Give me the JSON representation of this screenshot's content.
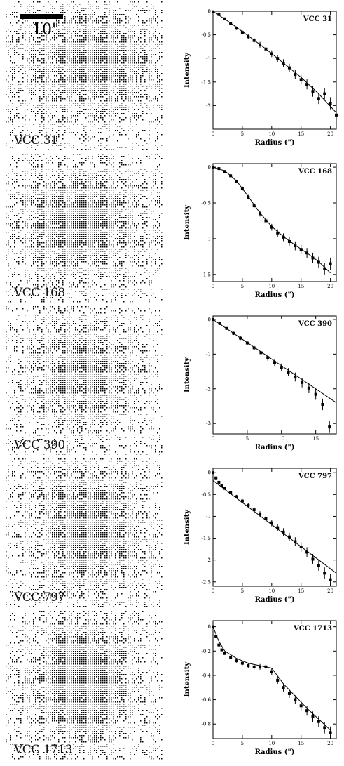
{
  "scale_bar": {
    "label": "10\""
  },
  "chart_data": [
    {
      "type": "scatter",
      "name": "VCC 31",
      "title": "VCC 31",
      "xlabel": "Radius (\")",
      "ylabel": "Intensity",
      "xlim": [
        0,
        21
      ],
      "ylim": [
        -2.5,
        0
      ],
      "xticks": [
        0,
        5,
        10,
        15,
        20
      ],
      "yticks": [
        0,
        -0.5,
        -1,
        -1.5,
        -2
      ],
      "xtick_labels": [
        "0",
        "5",
        "10",
        "15",
        "20"
      ],
      "ytick_labels": [
        "0",
        "-0.5",
        "-1",
        "-1.5",
        "-2"
      ],
      "profile": {
        "x": [
          0,
          1,
          2,
          3,
          4,
          5,
          6,
          7,
          8,
          9,
          10,
          11,
          12,
          13,
          14,
          15,
          16,
          17,
          18,
          19,
          20,
          21
        ],
        "y": [
          -0.01,
          -0.07,
          -0.16,
          -0.26,
          -0.36,
          -0.45,
          -0.54,
          -0.62,
          -0.71,
          -0.8,
          -0.9,
          -1.0,
          -1.1,
          -1.2,
          -1.34,
          -1.45,
          -1.55,
          -1.7,
          -1.85,
          -1.75,
          -1.95,
          -2.2
        ]
      },
      "model": {
        "x": [
          0,
          3,
          6,
          9,
          12,
          15,
          18,
          21
        ],
        "y": [
          0,
          -0.25,
          -0.52,
          -0.8,
          -1.1,
          -1.4,
          -1.75,
          -2.15
        ]
      }
    },
    {
      "type": "scatter",
      "name": "VCC 168",
      "title": "VCC 168",
      "xlabel": "Radius (\")",
      "ylabel": "Intensity",
      "xlim": [
        0,
        21
      ],
      "ylim": [
        -1.6,
        0.05
      ],
      "xticks": [
        0,
        5,
        10,
        15,
        20
      ],
      "yticks": [
        0,
        -0.5,
        -1,
        -1.5
      ],
      "xtick_labels": [
        "0",
        "5",
        "10",
        "15",
        "20"
      ],
      "ytick_labels": [
        "0",
        "-0.5",
        "-1",
        "-1.5"
      ],
      "profile": {
        "x": [
          0,
          1,
          2,
          3,
          4,
          5,
          6,
          7,
          8,
          9,
          10,
          11,
          12,
          13,
          14,
          15,
          16,
          17,
          18,
          19,
          20
        ],
        "y": [
          0.0,
          -0.02,
          -0.06,
          -0.12,
          -0.2,
          -0.3,
          -0.42,
          -0.54,
          -0.65,
          -0.75,
          -0.84,
          -0.92,
          -0.98,
          -1.04,
          -1.1,
          -1.15,
          -1.2,
          -1.27,
          -1.33,
          -1.42,
          -1.35
        ]
      },
      "model": {
        "x": [
          0,
          2,
          4,
          6,
          8,
          10,
          12,
          14,
          16,
          18,
          20
        ],
        "y": [
          0,
          -0.05,
          -0.19,
          -0.41,
          -0.64,
          -0.83,
          -0.97,
          -1.09,
          -1.2,
          -1.32,
          -1.48
        ]
      }
    },
    {
      "type": "scatter",
      "name": "VCC 390",
      "title": "VCC 390",
      "xlabel": "Radius (\")",
      "ylabel": "Intensity",
      "xlim": [
        0,
        18
      ],
      "ylim": [
        -3.3,
        0.1
      ],
      "xticks": [
        0,
        5,
        10,
        15
      ],
      "yticks": [
        0,
        -1,
        -2,
        -3
      ],
      "xtick_labels": [
        "0",
        "5",
        "10",
        "15"
      ],
      "ytick_labels": [
        "0",
        "-1",
        "-2",
        "-3"
      ],
      "profile": {
        "x": [
          0,
          1,
          2,
          3,
          4,
          5,
          6,
          7,
          8,
          9,
          10,
          11,
          12,
          13,
          14,
          15,
          16,
          17
        ],
        "y": [
          0.0,
          -0.12,
          -0.26,
          -0.4,
          -0.54,
          -0.68,
          -0.82,
          -0.96,
          -1.1,
          -1.24,
          -1.38,
          -1.52,
          -1.66,
          -1.82,
          -1.98,
          -2.16,
          -2.45,
          -3.1
        ]
      },
      "model": {
        "x": [
          0,
          18
        ],
        "y": [
          0,
          -2.4
        ]
      }
    },
    {
      "type": "scatter",
      "name": "VCC 797",
      "title": "VCC 797",
      "xlabel": "Radius (\")",
      "ylabel": "Intensity",
      "xlim": [
        0,
        21
      ],
      "ylim": [
        -2.6,
        0.1
      ],
      "xticks": [
        0,
        5,
        10,
        15,
        20
      ],
      "yticks": [
        0,
        -0.5,
        -1,
        -1.5,
        -2,
        -2.5
      ],
      "xtick_labels": [
        "0",
        "5",
        "10",
        "15",
        "20"
      ],
      "ytick_labels": [
        "0",
        "-0.5",
        "-1",
        "-1.5",
        "-2",
        "-2.5"
      ],
      "profile": {
        "x": [
          0,
          0.5,
          1,
          1.5,
          2,
          3,
          4,
          5,
          6,
          7,
          8,
          9,
          10,
          11,
          12,
          13,
          14,
          15,
          16,
          17,
          18,
          19,
          20
        ],
        "y": [
          0.0,
          -0.12,
          -0.22,
          -0.3,
          -0.36,
          -0.45,
          -0.55,
          -0.65,
          -0.75,
          -0.85,
          -0.95,
          -1.05,
          -1.15,
          -1.26,
          -1.36,
          -1.47,
          -1.58,
          -1.7,
          -1.82,
          -1.98,
          -2.12,
          -2.3,
          -2.45
        ]
      },
      "model": {
        "x": [
          0,
          21
        ],
        "y": [
          -0.18,
          -2.3
        ]
      }
    },
    {
      "type": "scatter",
      "name": "VCC 1713",
      "title": "VCC 1713",
      "xlabel": "Radius (\")",
      "ylabel": "Intensity",
      "xlim": [
        0,
        21
      ],
      "ylim": [
        -0.92,
        0.05
      ],
      "xticks": [
        0,
        5,
        10,
        15,
        20
      ],
      "yticks": [
        0,
        -0.2,
        -0.4,
        -0.6,
        -0.8
      ],
      "xtick_labels": [
        "0",
        "5",
        "10",
        "15",
        "20"
      ],
      "ytick_labels": [
        "0",
        "-0.2",
        "-0.4",
        "-0.6",
        "-0.8"
      ],
      "profile": {
        "x": [
          0,
          0.5,
          1,
          1.5,
          2,
          3,
          4,
          5,
          6,
          7,
          8,
          9,
          10,
          11,
          12,
          13,
          14,
          15,
          16,
          17,
          18,
          19,
          20
        ],
        "y": [
          0.0,
          -0.08,
          -0.15,
          -0.19,
          -0.22,
          -0.25,
          -0.28,
          -0.3,
          -0.32,
          -0.33,
          -0.33,
          -0.33,
          -0.37,
          -0.44,
          -0.5,
          -0.55,
          -0.6,
          -0.65,
          -0.69,
          -0.74,
          -0.78,
          -0.83,
          -0.87
        ]
      },
      "model": {
        "x": [
          0,
          1,
          2,
          4,
          6,
          8,
          10,
          12,
          14,
          16,
          18,
          20
        ],
        "y": [
          0.0,
          -0.12,
          -0.2,
          -0.26,
          -0.3,
          -0.32,
          -0.34,
          -0.47,
          -0.57,
          -0.67,
          -0.76,
          -0.85
        ]
      }
    }
  ]
}
